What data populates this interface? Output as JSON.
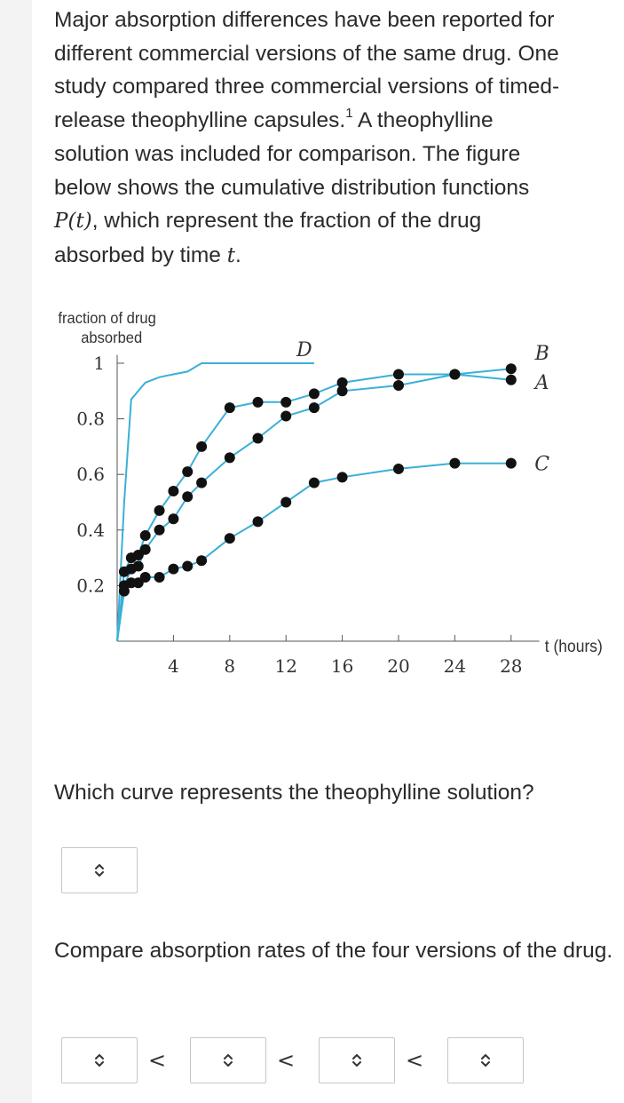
{
  "intro": {
    "line1": "Major absorption differences have been reported for",
    "line2": "different commercial versions of the same drug. One",
    "line3": "study compared three commercial versions of timed-",
    "line4a": "release theophylline capsules.",
    "footnote": "1",
    "line4b": " A theophylline",
    "line5": "solution was included for comparison. The figure",
    "line6": "below shows the cumulative distribution functions",
    "math_P": "P",
    "math_t_paren": "(t)",
    "line7b": ", which represent the fraction of the drug",
    "line8a": "absorbed by time ",
    "math_t": "t",
    "line8b": "."
  },
  "chart_data": {
    "type": "line",
    "ylabel_line1": "fraction of drug",
    "ylabel_line2": "absorbed",
    "xlabel": "t (hours)",
    "xlim": [
      0,
      30
    ],
    "ylim": [
      0,
      1.05
    ],
    "x_ticks": [
      4,
      8,
      12,
      16,
      20,
      24,
      28
    ],
    "y_ticks": [
      0.2,
      0.4,
      0.6,
      0.8,
      1
    ],
    "y_tick_labels": [
      "0.2",
      "0.4",
      "0.6",
      "0.8",
      "1"
    ],
    "series": [
      {
        "name": "D",
        "x": [
          0,
          0.5,
          1.0,
          2,
          3,
          4,
          5,
          6,
          8,
          10,
          12,
          14
        ],
        "y": [
          0,
          0.5,
          0.87,
          0.93,
          0.95,
          0.96,
          0.97,
          1.0,
          1.0,
          1.0,
          1.0,
          1.0
        ]
      },
      {
        "name": "B",
        "x": [
          0,
          0.5,
          1.0,
          1.5,
          2,
          3,
          4,
          5,
          6,
          8,
          10,
          12,
          14,
          16,
          20,
          24,
          28
        ],
        "y": [
          0,
          0.25,
          0.3,
          0.31,
          0.38,
          0.47,
          0.54,
          0.61,
          0.7,
          0.84,
          0.86,
          0.86,
          0.89,
          0.93,
          0.96,
          0.96,
          0.98
        ]
      },
      {
        "name": "A",
        "x": [
          0,
          0.5,
          1.0,
          1.5,
          2,
          3,
          4,
          5,
          6,
          8,
          10,
          12,
          14,
          16,
          20,
          24,
          28
        ],
        "y": [
          0,
          0.2,
          0.26,
          0.27,
          0.33,
          0.4,
          0.44,
          0.52,
          0.57,
          0.66,
          0.73,
          0.81,
          0.84,
          0.9,
          0.92,
          0.96,
          0.94
        ]
      },
      {
        "name": "C",
        "x": [
          0,
          0.5,
          1.0,
          1.5,
          2,
          3,
          4,
          5,
          6,
          8,
          10,
          12,
          14,
          16,
          20,
          24,
          28
        ],
        "y": [
          0,
          0.18,
          0.21,
          0.21,
          0.23,
          0.23,
          0.26,
          0.27,
          0.29,
          0.37,
          0.43,
          0.5,
          0.57,
          0.59,
          0.62,
          0.64,
          0.64
        ]
      }
    ],
    "curve_labels": {
      "D": "D",
      "B": "B",
      "A": "A",
      "C": "C"
    },
    "colors": {
      "line": "#3ab0d8",
      "point": "#111111",
      "axis": "#555555"
    }
  },
  "question1": {
    "text": "Which curve represents the theophylline solution?"
  },
  "question2": {
    "text": "Compare absorption rates of the four versions of the drug."
  },
  "comparison": {
    "symbol": "<"
  }
}
